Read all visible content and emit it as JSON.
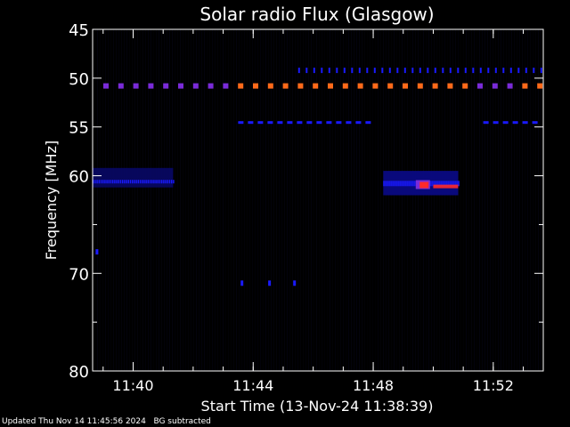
{
  "chart_data": {
    "type": "heatmap",
    "title": "Solar radio Flux (Glasgow)",
    "ylabel": "Frequency [MHz]",
    "xlabel": "Start Time (13-Nov-24 11:38:39)",
    "y_ticks": [
      45,
      50,
      55,
      60,
      70,
      80
    ],
    "y_minor_ticks": [
      65,
      75
    ],
    "x_ticks": [
      "11:40",
      "11:44",
      "11:48",
      "11:52"
    ],
    "x_range": [
      "11:38:39",
      "11:53:40"
    ],
    "y_range": [
      45,
      80
    ],
    "colors": {
      "background": "#000000",
      "low": "#1a1aff",
      "mid": "#7a2bd9",
      "high": "#ff6a1a",
      "peak": "#ff2a2a"
    },
    "features": {
      "carrier_51": {
        "freq": 50.8,
        "from": "11:38:39",
        "to": "11:53:40"
      },
      "line_49": {
        "freq": 49.2,
        "from": "11:45:30",
        "to": "11:53:40"
      },
      "line_54": {
        "freq": 54.5,
        "from": "11:43:30",
        "to": "11:48:00"
      },
      "band_60": {
        "freq_from": 59.2,
        "freq_to": 61.2,
        "from": "11:38:39",
        "to": "11:41:20"
      },
      "burst": {
        "freq_from": 59.5,
        "freq_to": 62.0,
        "from": "11:48:20",
        "to": "11:50:50",
        "peak_time": "11:49:40",
        "peak_freq": 61.0
      }
    }
  },
  "footer": {
    "updated": "Updated Thu Nov 14 11:45:56 2024",
    "note": "BG subtracted"
  }
}
